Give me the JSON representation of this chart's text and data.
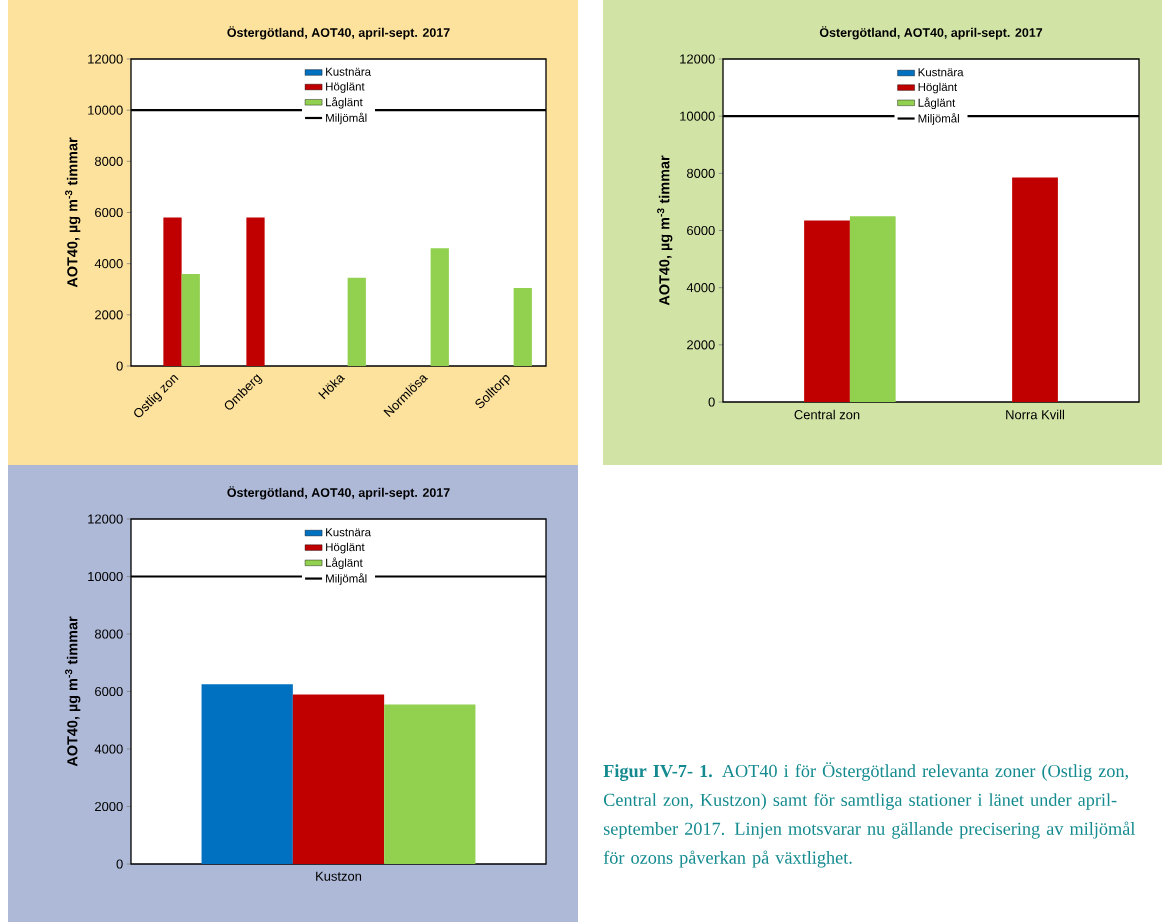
{
  "chart_data": [
    {
      "type": "bar",
      "title": "Östergötland, AOT40, april-sept. 2017",
      "ylabel": "AOT40, µg m$^{-3}$ timmar",
      "categories": [
        "Ostlig zon",
        "Omberg",
        "Höka",
        "Normlösa",
        "Solltorp"
      ],
      "series": [
        {
          "name": "Kustnära",
          "color": "#0070c0",
          "values": [
            null,
            null,
            null,
            null,
            null
          ]
        },
        {
          "name": "Höglänt",
          "color": "#c00000",
          "values": [
            5800,
            5800,
            null,
            null,
            null
          ]
        },
        {
          "name": "Låglänt",
          "color": "#92d050",
          "values": [
            3600,
            null,
            3450,
            4600,
            3050
          ]
        }
      ],
      "ylim": [
        0,
        12000
      ],
      "yticks": [
        0,
        2000,
        4000,
        6000,
        8000,
        10000,
        12000
      ],
      "legend": "top",
      "ref_lines": [
        {
          "axis": "y",
          "value": 10000,
          "label": "Miljömål",
          "color": "#000000"
        }
      ]
    },
    {
      "type": "bar",
      "title": "Östergötland, AOT40, april-sept. 2017",
      "ylabel": "AOT40, µg m$^{-3}$ timmar",
      "categories": [
        "Central zon",
        "Norra Kvill"
      ],
      "series": [
        {
          "name": "Kustnära",
          "color": "#0070c0",
          "values": [
            null,
            null
          ]
        },
        {
          "name": "Höglänt",
          "color": "#c00000",
          "values": [
            6350,
            7850
          ]
        },
        {
          "name": "Låglänt",
          "color": "#92d050",
          "values": [
            6500,
            null
          ]
        }
      ],
      "ylim": [
        0,
        12000
      ],
      "yticks": [
        0,
        2000,
        4000,
        6000,
        8000,
        10000,
        12000
      ],
      "legend": "top",
      "ref_lines": [
        {
          "axis": "y",
          "value": 10000,
          "label": "Miljömål",
          "color": "#000000"
        }
      ]
    },
    {
      "type": "bar",
      "title": "Östergötland, AOT40, april-sept. 2017",
      "ylabel": "AOT40, µg m$^{-3}$ timmar",
      "categories": [
        "Kustzon"
      ],
      "series": [
        {
          "name": "Kustnära",
          "color": "#0070c0",
          "values": [
            6250
          ]
        },
        {
          "name": "Höglänt",
          "color": "#c00000",
          "values": [
            5900
          ]
        },
        {
          "name": "Låglänt",
          "color": "#92d050",
          "values": [
            5550
          ]
        }
      ],
      "ylim": [
        0,
        12000
      ],
      "yticks": [
        0,
        2000,
        4000,
        6000,
        8000,
        10000,
        12000
      ],
      "legend": "top",
      "ref_lines": [
        {
          "axis": "y",
          "value": 10000,
          "label": "Miljömål",
          "color": "#000000"
        }
      ]
    },
    {
      "type": "other",
      "annotations": [
        "**Figur IV-7- 1.** AOT40 i för Östergötland relevanta zoner (Ostlig zon, Central zon, Kustzon) samt för samtliga stationer i länet under april-september 2017. Linjen motsvarar nu gällande precisering av miljömål för ozons påverkan på växtlighet."
      ]
    }
  ]
}
